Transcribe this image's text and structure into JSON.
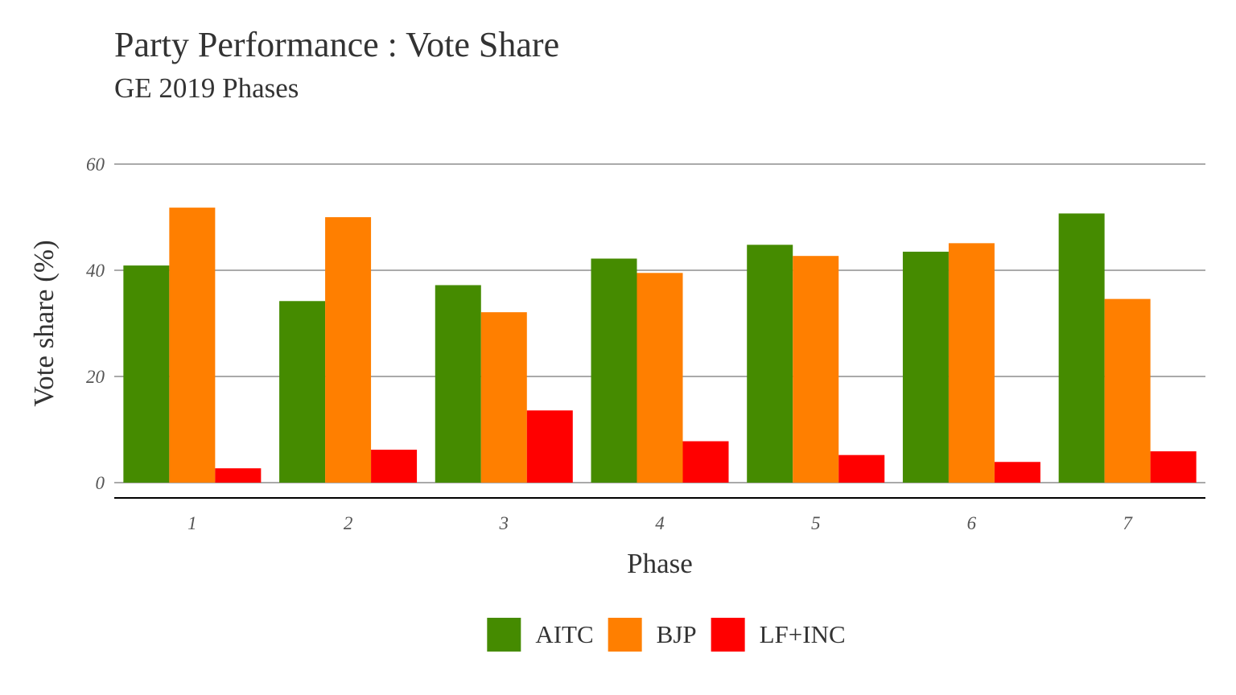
{
  "chart_data": {
    "type": "bar",
    "title": "Party Performance : Vote Share",
    "subtitle": "GE 2019 Phases",
    "xlabel": "Phase",
    "ylabel": "Vote share (%)",
    "categories": [
      "1",
      "2",
      "3",
      "4",
      "5",
      "6",
      "7"
    ],
    "yticks": [
      "0",
      "20",
      "40",
      "60"
    ],
    "ylim": [
      0,
      60
    ],
    "grid": true,
    "legend": "bottom",
    "series": [
      {
        "name": "AITC",
        "color": "#458B00",
        "values": [
          40.9,
          34.2,
          37.2,
          42.2,
          44.8,
          43.5,
          50.7
        ]
      },
      {
        "name": "BJP",
        "color": "#FF7F00",
        "values": [
          51.8,
          50.0,
          32.1,
          39.5,
          42.7,
          45.1,
          34.6
        ]
      },
      {
        "name": "LF+INC",
        "color": "#FF0000",
        "values": [
          2.7,
          6.2,
          13.6,
          7.8,
          5.2,
          3.9,
          5.9
        ]
      }
    ]
  }
}
